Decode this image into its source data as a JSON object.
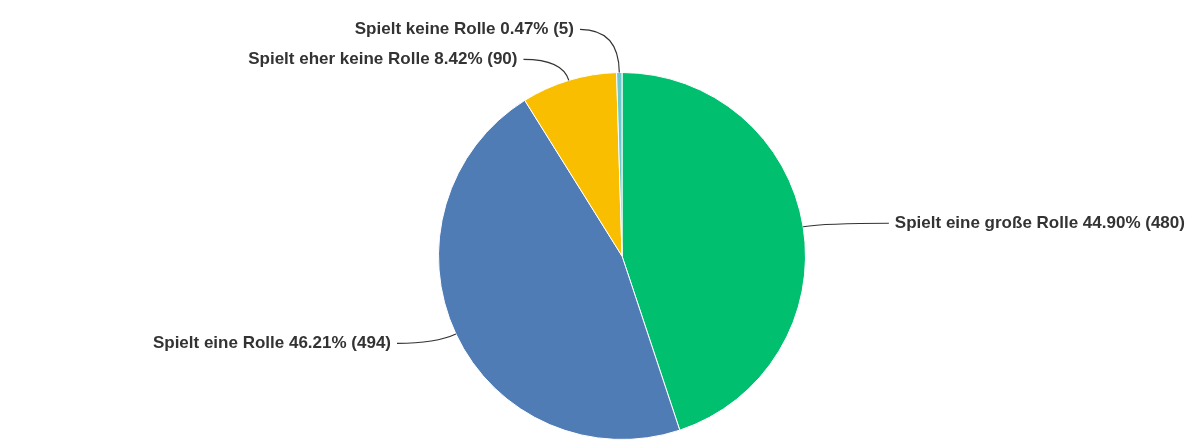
{
  "chart_data": {
    "type": "pie",
    "categories": [
      "Spielt eine große Rolle",
      "Spielt eine Rolle",
      "Spielt eher keine Rolle",
      "Spielt keine Rolle"
    ],
    "values": [
      480,
      494,
      90,
      5
    ],
    "value_labels": [
      "44.90% (480)",
      "46.21% (494)",
      "8.42% (90)",
      "0.47% (5)"
    ],
    "colors": [
      "#00bf6f",
      "#507cb6",
      "#f9be00",
      "#6bc8cd"
    ],
    "legend": false
  }
}
